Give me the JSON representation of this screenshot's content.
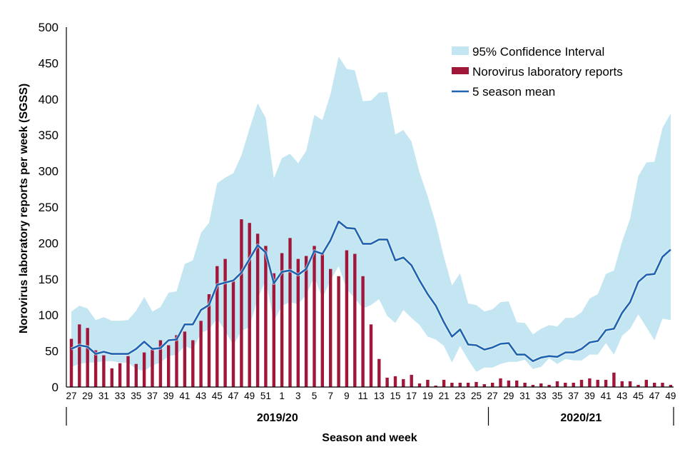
{
  "chart_data": {
    "type": "bar",
    "title": "",
    "xlabel": "Season and week",
    "ylabel": "Norovirus laboratory reports per week (SGSS)",
    "ylim": [
      0,
      500
    ],
    "yticks": [
      0,
      50,
      100,
      150,
      200,
      250,
      300,
      350,
      400,
      450,
      500
    ],
    "grid": false,
    "legend_position": "top-right",
    "seasons": [
      {
        "label": "2019/20",
        "start_index": 0,
        "end_index": 51
      },
      {
        "label": "2020/21",
        "start_index": 52,
        "end_index": 74
      }
    ],
    "weeks": [
      27,
      28,
      29,
      30,
      31,
      32,
      33,
      34,
      35,
      36,
      37,
      38,
      39,
      40,
      41,
      42,
      43,
      44,
      45,
      46,
      47,
      48,
      49,
      50,
      51,
      52,
      1,
      2,
      3,
      4,
      5,
      6,
      7,
      8,
      9,
      10,
      11,
      12,
      13,
      14,
      15,
      16,
      17,
      18,
      19,
      20,
      21,
      22,
      23,
      24,
      25,
      26,
      27,
      28,
      29,
      30,
      31,
      32,
      33,
      34,
      35,
      36,
      37,
      38,
      39,
      40,
      41,
      42,
      43,
      44,
      45,
      46,
      47,
      48,
      49
    ],
    "series": [
      {
        "name": "95% Confidence Interval",
        "kind": "band",
        "color": "#c3e6f2",
        "lower": [
          28,
          32,
          34,
          34,
          36,
          36,
          34,
          34,
          25,
          22,
          30,
          34,
          43,
          45,
          57,
          52,
          75,
          80,
          95,
          78,
          58,
          78,
          83,
          123,
          148,
          91,
          113,
          118,
          115,
          128,
          153,
          123,
          148,
          168,
          136,
          123,
          109,
          114,
          122,
          99,
          89,
          107,
          96,
          86,
          70,
          66,
          57,
          34,
          57,
          38,
          21,
          27,
          27,
          32,
          35,
          35,
          38,
          25,
          28,
          40,
          32,
          39,
          37,
          37,
          45,
          45,
          61,
          45,
          71,
          81,
          101,
          83,
          65,
          95,
          93
        ],
        "upper": [
          105,
          113,
          109,
          93,
          97,
          92,
          92,
          93,
          106,
          125,
          105,
          111,
          131,
          133,
          171,
          176,
          214,
          228,
          283,
          291,
          297,
          322,
          359,
          394,
          374,
          290,
          318,
          324,
          311,
          328,
          378,
          371,
          407,
          459,
          442,
          440,
          397,
          398,
          409,
          410,
          351,
          357,
          341,
          298,
          265,
          227,
          181,
          141,
          158,
          116,
          114,
          105,
          108,
          118,
          119,
          90,
          89,
          73,
          81,
          86,
          84,
          96,
          96,
          104,
          123,
          129,
          157,
          162,
          202,
          234,
          293,
          312,
          313,
          360,
          380
        ]
      },
      {
        "name": "Norovirus laboratory reports",
        "kind": "bar",
        "color": "#a0173a",
        "values": [
          67,
          87,
          82,
          51,
          44,
          26,
          33,
          43,
          32,
          48,
          52,
          65,
          58,
          72,
          77,
          65,
          92,
          129,
          168,
          178,
          147,
          233,
          228,
          213,
          196,
          158,
          186,
          207,
          178,
          182,
          196,
          185,
          164,
          154,
          190,
          185,
          154,
          87,
          39,
          13,
          15,
          11,
          17,
          5,
          10,
          2,
          10,
          6,
          6,
          6,
          7,
          4,
          6,
          12,
          9,
          9,
          6,
          3,
          5,
          3,
          8,
          6,
          6,
          10,
          12,
          10,
          10,
          20,
          8,
          8,
          3,
          10,
          6,
          6,
          3
        ]
      },
      {
        "name": "5 season mean",
        "kind": "line",
        "color": "#1f63b0",
        "values": [
          53,
          58,
          56,
          46,
          49,
          46,
          46,
          46,
          53,
          63,
          53,
          54,
          65,
          66,
          87,
          87,
          107,
          114,
          142,
          145,
          148,
          159,
          178,
          197,
          187,
          144,
          160,
          162,
          156,
          164,
          189,
          185,
          204,
          230,
          221,
          220,
          199,
          199,
          205,
          205,
          176,
          180,
          169,
          148,
          129,
          113,
          90,
          70,
          80,
          59,
          58,
          52,
          55,
          60,
          61,
          45,
          45,
          36,
          41,
          43,
          42,
          48,
          48,
          53,
          62,
          64,
          79,
          81,
          103,
          118,
          146,
          156,
          157,
          181,
          191
        ]
      }
    ]
  }
}
